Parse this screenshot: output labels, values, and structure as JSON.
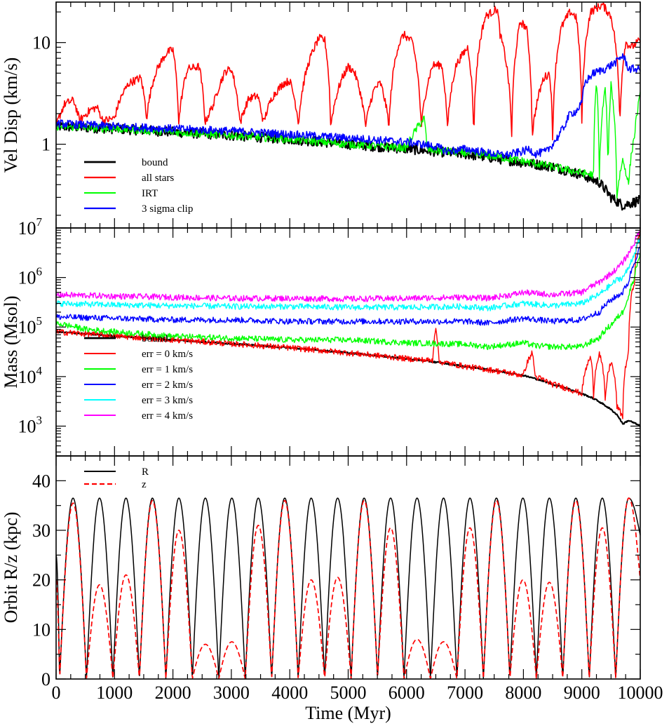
{
  "chart_data": [
    {
      "type": "line",
      "id": "veldisp",
      "ylabel": "Vel Disp (km/s)",
      "yscale": "log",
      "xlim": [
        0,
        10000
      ],
      "ylim": [
        0.15,
        25
      ],
      "yticks": [
        {
          "value": 1,
          "label": "1"
        },
        {
          "value": 10,
          "label": "10"
        }
      ],
      "legend": {
        "position": "bottom-left"
      },
      "series": [
        {
          "name": "bound",
          "color": "#000000",
          "width": 2.2,
          "x": [
            0,
            1000,
            2000,
            3000,
            4000,
            5000,
            6000,
            7000,
            7500,
            8000,
            8500,
            9000,
            9300,
            9500,
            9700,
            10000
          ],
          "y": [
            1.5,
            1.42,
            1.32,
            1.22,
            1.12,
            1.0,
            0.9,
            0.8,
            0.73,
            0.66,
            0.6,
            0.5,
            0.42,
            0.3,
            0.25,
            0.28
          ]
        },
        {
          "name": "all stars",
          "color": "#ff0000",
          "width": 1.6,
          "x": [
            0,
            150,
            300,
            400,
            600,
            700,
            800,
            1000,
            1100,
            1250,
            1450,
            1550,
            1700,
            1900,
            2000,
            2100,
            2250,
            2450,
            2550,
            2700,
            2900,
            3000,
            3150,
            3300,
            3450,
            3550,
            3700,
            3900,
            4000,
            4150,
            4350,
            4500,
            4600,
            4700,
            4900,
            5000,
            5100,
            5300,
            5450,
            5550,
            5700,
            5850,
            5950,
            6100,
            6250,
            6450,
            6600,
            6700,
            6850,
            7050,
            7150,
            7350,
            7550,
            7600,
            7800,
            7950,
            8050,
            8150,
            8350,
            8450,
            8500,
            8650,
            8800,
            8900,
            9000,
            9150,
            9350,
            9500,
            9650,
            9750,
            9850,
            10000
          ],
          "y": [
            1.5,
            2.5,
            2.7,
            1.7,
            2.2,
            2.3,
            1.7,
            1.8,
            2.8,
            4.0,
            4.5,
            1.8,
            5.0,
            8.0,
            8.5,
            1.6,
            5.5,
            5.8,
            1.6,
            2.5,
            5.2,
            5.5,
            1.6,
            2.8,
            3.0,
            1.6,
            2.9,
            4.0,
            4.2,
            1.6,
            7.0,
            11.0,
            10.5,
            1.5,
            4.5,
            5.8,
            5.2,
            1.5,
            3.5,
            4.0,
            1.5,
            9.0,
            12.0,
            10.0,
            1.4,
            6.0,
            6.0,
            1.4,
            6.0,
            9.0,
            1.2,
            18.0,
            21.5,
            12.0,
            1.2,
            16.0,
            14.0,
            1.2,
            4.5,
            5.0,
            1.1,
            14.0,
            20.0,
            18.0,
            1.6,
            20.0,
            23.5,
            18.0,
            1.5,
            10.0,
            9.0,
            10.5
          ]
        },
        {
          "name": "IRT",
          "color": "#00ff00",
          "width": 1.4,
          "x": [
            0,
            1000,
            2000,
            3000,
            4000,
            5000,
            6000,
            6300,
            6350,
            6400,
            7000,
            7500,
            8000,
            8500,
            9000,
            9200,
            9250,
            9300,
            9400,
            9450,
            9500,
            9600,
            9700,
            9800,
            9900,
            10000
          ],
          "y": [
            1.5,
            1.42,
            1.32,
            1.22,
            1.12,
            1.0,
            0.92,
            1.8,
            0.9,
            0.88,
            0.82,
            0.76,
            0.68,
            0.6,
            0.52,
            0.5,
            4.0,
            0.45,
            3.5,
            0.4,
            3.8,
            0.3,
            0.7,
            0.4,
            1.2,
            3.0
          ]
        },
        {
          "name": "3 sigma clip",
          "color": "#0000ff",
          "width": 1.6,
          "x": [
            0,
            1000,
            2000,
            3000,
            4000,
            5000,
            6000,
            6500,
            6700,
            7000,
            7500,
            7700,
            8000,
            8100,
            8200,
            8400,
            8500,
            8600,
            8700,
            8800,
            8900,
            9000,
            9050,
            9200,
            9400,
            9600,
            9700,
            9800,
            10000
          ],
          "y": [
            1.6,
            1.5,
            1.42,
            1.35,
            1.25,
            1.15,
            1.05,
            0.95,
            0.85,
            0.9,
            0.8,
            0.78,
            0.85,
            0.9,
            0.8,
            0.85,
            1.0,
            1.2,
            1.5,
            2.0,
            2.1,
            2.5,
            4.0,
            5.0,
            5.5,
            6.5,
            7.5,
            5.5,
            5.5
          ]
        }
      ]
    },
    {
      "type": "line",
      "id": "mass",
      "ylabel": "Mass (Msol)",
      "yscale": "log",
      "xlim": [
        0,
        10000
      ],
      "ylim": [
        250,
        10000000
      ],
      "yticks": [
        {
          "value": 1000,
          "base": "10",
          "exp": "3"
        },
        {
          "value": 10000,
          "base": "10",
          "exp": "4"
        },
        {
          "value": 100000,
          "base": "10",
          "exp": "5"
        },
        {
          "value": 1000000,
          "base": "10",
          "exp": "6"
        },
        {
          "value": 10000000,
          "base": "10",
          "exp": "7"
        }
      ],
      "legend": {
        "position": "bottom-left"
      },
      "series": [
        {
          "name": "bound",
          "color": "#000000",
          "width": 2.2,
          "x": [
            0,
            1000,
            2000,
            3000,
            4000,
            5000,
            6000,
            7000,
            8000,
            8500,
            9000,
            9200,
            9400,
            9600,
            9700,
            9800,
            10000
          ],
          "y": [
            80000,
            66000,
            55000,
            46000,
            38000,
            30000,
            23000,
            16000,
            10500,
            7000,
            4500,
            3600,
            2600,
            1700,
            1100,
            1300,
            1000
          ]
        },
        {
          "name": "err = 0 km/s",
          "color": "#ff0000",
          "width": 1.4,
          "x": [
            0,
            1000,
            2000,
            3000,
            4000,
            5000,
            6000,
            6450,
            6500,
            6550,
            7000,
            8000,
            8150,
            8200,
            8500,
            9000,
            9150,
            9200,
            9300,
            9400,
            9500,
            9600,
            9700,
            9800,
            9900,
            10000
          ],
          "y": [
            80000,
            66000,
            55000,
            46000,
            38000,
            30000,
            23000,
            21000,
            100000,
            20000,
            16000,
            10500,
            30000,
            10000,
            7000,
            4500,
            25000,
            4000,
            30000,
            3000,
            20000,
            2500,
            1500,
            30000,
            800000,
            9000000
          ]
        },
        {
          "name": "err = 1 km/s",
          "color": "#00ff00",
          "width": 1.4,
          "x": [
            0,
            500,
            1000,
            2000,
            3000,
            4000,
            5000,
            6000,
            7000,
            7400,
            7800,
            8000,
            8200,
            8500,
            9000,
            9300,
            9500,
            9600,
            9700,
            9800,
            9900,
            10000
          ],
          "y": [
            120000,
            90000,
            80000,
            65000,
            60000,
            55000,
            55000,
            48000,
            45000,
            40000,
            45000,
            48000,
            42000,
            40000,
            40000,
            60000,
            110000,
            150000,
            200000,
            400000,
            1000000,
            3000000
          ]
        },
        {
          "name": "err = 2 km/s",
          "color": "#0000ff",
          "width": 1.4,
          "x": [
            0,
            1000,
            2000,
            3000,
            4000,
            5000,
            6000,
            7000,
            7400,
            7800,
            8000,
            8500,
            9000,
            9300,
            9500,
            9600,
            9700,
            9800,
            9900,
            10000
          ],
          "y": [
            160000,
            150000,
            140000,
            140000,
            130000,
            130000,
            130000,
            130000,
            120000,
            140000,
            150000,
            130000,
            140000,
            200000,
            350000,
            420000,
            500000,
            800000,
            2000000,
            4000000
          ]
        },
        {
          "name": "err = 3 km/s",
          "color": "#00ffff",
          "width": 1.4,
          "x": [
            0,
            1000,
            2000,
            3000,
            4000,
            5000,
            6000,
            7000,
            7400,
            7800,
            8000,
            8500,
            9000,
            9300,
            9500,
            9600,
            9700,
            9800,
            9900,
            10000
          ],
          "y": [
            300000,
            280000,
            270000,
            260000,
            260000,
            250000,
            250000,
            260000,
            240000,
            280000,
            300000,
            270000,
            300000,
            450000,
            700000,
            900000,
            1000000,
            1500000,
            3000000,
            6000000
          ]
        },
        {
          "name": "err = 4 km/s",
          "color": "#ff00ff",
          "width": 1.4,
          "x": [
            0,
            1000,
            2000,
            3000,
            4000,
            5000,
            6000,
            7000,
            7400,
            7800,
            8000,
            8500,
            9000,
            9300,
            9500,
            9600,
            9700,
            9800,
            9900,
            10000
          ],
          "y": [
            450000,
            420000,
            400000,
            380000,
            380000,
            370000,
            380000,
            400000,
            380000,
            450000,
            500000,
            450000,
            500000,
            800000,
            1200000,
            1500000,
            2000000,
            3000000,
            5000000,
            9000000
          ]
        }
      ]
    },
    {
      "type": "line",
      "id": "orbit",
      "ylabel": "Orbit R/z (kpc)",
      "xlabel": "Time (Myr)",
      "yscale": "linear",
      "xlim": [
        0,
        10000
      ],
      "ylim": [
        0,
        45
      ],
      "yticks": [
        0,
        10,
        20,
        30,
        40
      ],
      "xticks": [
        0,
        1000,
        2000,
        3000,
        4000,
        5000,
        6000,
        7000,
        8000,
        9000,
        10000
      ],
      "legend": {
        "position": "top-left"
      },
      "orbit": {
        "R_max_kpc": 36.5,
        "period_Myr": 453,
        "first_peak_Myr": 290
      },
      "series": [
        {
          "name": "R",
          "color": "#000000",
          "width": 1.5,
          "dash": "",
          "x": [
            0,
            60,
            290,
            520,
            743,
            973,
            1196,
            1426,
            1649,
            1879,
            2102,
            2332,
            2555,
            2785,
            3008,
            3238,
            3461,
            3691,
            3914,
            4144,
            4367,
            4597,
            4820,
            5050,
            5273,
            5503,
            5726,
            5956,
            6179,
            6409,
            6632,
            6862,
            7085,
            7315,
            7538,
            7768,
            7991,
            8221,
            8444,
            8674,
            8897,
            9127,
            9350,
            9580,
            9803,
            10000
          ],
          "y": [
            25,
            0,
            36.5,
            0,
            36.5,
            0,
            36.5,
            0,
            36.5,
            0,
            36.5,
            0,
            36.5,
            0,
            36.5,
            0,
            36.5,
            0,
            36.5,
            0,
            36.5,
            0,
            36.5,
            0,
            36.5,
            0,
            36.5,
            0,
            36.5,
            0,
            36.5,
            0,
            36.5,
            0,
            36.5,
            0,
            36.5,
            0,
            36.5,
            0,
            36.5,
            0,
            36.5,
            0,
            36.5,
            29
          ]
        },
        {
          "name": "z",
          "color": "#ff0000",
          "width": 1.7,
          "dash": "7,4",
          "x": [
            0,
            60,
            290,
            520,
            743,
            973,
            1196,
            1426,
            1649,
            1879,
            2102,
            2332,
            2555,
            2785,
            3008,
            3238,
            3461,
            3691,
            3914,
            4144,
            4367,
            4597,
            4820,
            5050,
            5273,
            5503,
            5726,
            5956,
            6179,
            6409,
            6632,
            6862,
            7085,
            7315,
            7538,
            7768,
            7991,
            8221,
            8444,
            8674,
            8897,
            9127,
            9350,
            9580,
            9803,
            10000
          ],
          "y": [
            20,
            0,
            35.5,
            0,
            19,
            0,
            21,
            0,
            36,
            0,
            30,
            0,
            7,
            0,
            7.5,
            0,
            31,
            0,
            36,
            0,
            20,
            0,
            20.5,
            0,
            36,
            0,
            30.5,
            0,
            8,
            0,
            7.5,
            0,
            30.5,
            0,
            36,
            0,
            20,
            0,
            19.5,
            0,
            36,
            0,
            30.5,
            0,
            36.5,
            20
          ]
        }
      ]
    }
  ]
}
